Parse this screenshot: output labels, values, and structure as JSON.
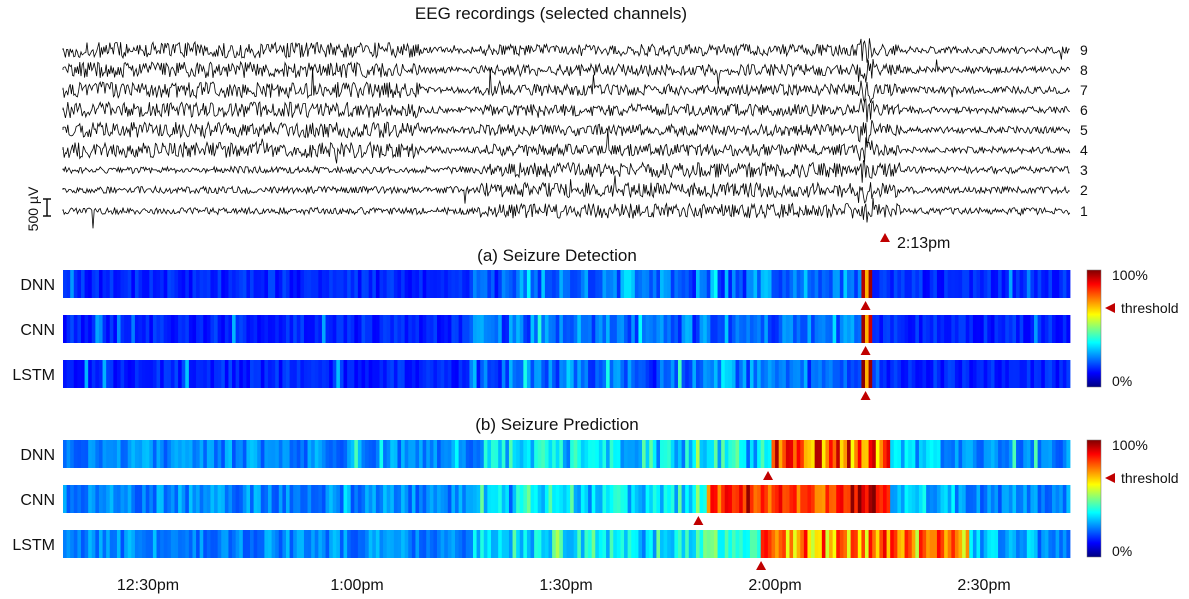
{
  "figure": {
    "eeg_title": "EEG recordings (selected channels)",
    "detection_title": "(a) Seizure Detection",
    "prediction_title": "(b) Seizure Prediction",
    "scale_bar_label": "500 µV",
    "seizure_marker_label": "2:13pm",
    "colorbar": {
      "max_label": "100%",
      "min_label": "0%",
      "threshold_label": "threshold"
    }
  },
  "chart_data": [
    {
      "type": "line",
      "title": "EEG recordings (selected channels)",
      "channels": [
        "1",
        "2",
        "3",
        "4",
        "5",
        "6",
        "7",
        "8",
        "9"
      ],
      "time_range": [
        "12:13pm",
        "2:44pm"
      ],
      "scale_bar": "500 µV",
      "seizure_onset": "2:13pm"
    },
    {
      "type": "heatmap",
      "title": "(a) Seizure Detection",
      "rows": [
        "DNN",
        "CNN",
        "LSTM"
      ],
      "colormap": "jet",
      "range_labels": [
        "0%",
        "100%"
      ],
      "threshold": 0.6,
      "markers": [
        "2:13pm",
        "2:13pm",
        "2:13pm"
      ],
      "x_ticks": [
        "12:30pm",
        "1:00pm",
        "1:30pm",
        "2:00pm",
        "2:30pm"
      ]
    },
    {
      "type": "heatmap",
      "title": "(b) Seizure Prediction",
      "rows": [
        "DNN",
        "CNN",
        "LSTM"
      ],
      "colormap": "jet",
      "range_labels": [
        "0%",
        "100%"
      ],
      "threshold": 0.6,
      "markers": [
        "1:59pm",
        "1:49pm",
        "1:58pm"
      ],
      "x_ticks": [
        "12:30pm",
        "1:00pm",
        "1:30pm",
        "2:00pm",
        "2:30pm"
      ]
    }
  ],
  "colors": {
    "trace": "#000000",
    "marker": "#c00000",
    "colormap_stops": [
      "#00007f",
      "#0000ff",
      "#00ffff",
      "#ffff00",
      "#ff0000",
      "#7f0000"
    ]
  }
}
